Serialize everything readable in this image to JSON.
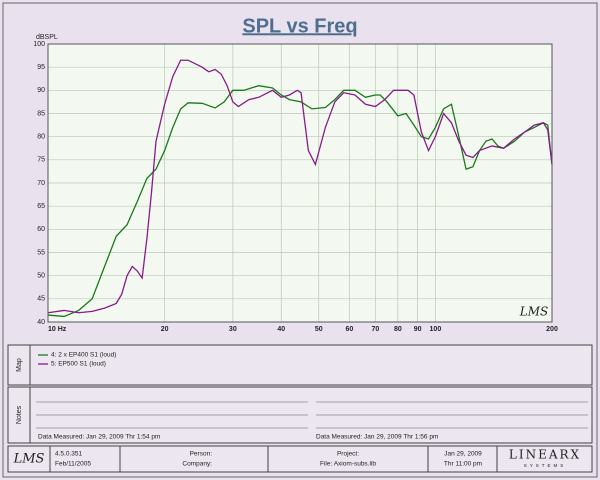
{
  "chart_data": {
    "type": "line",
    "title": "SPL vs Freq",
    "y_label": "dBSPL",
    "watermark": "LMS",
    "xlog": true,
    "xlim": [
      10,
      200
    ],
    "ylim": [
      40,
      100
    ],
    "xticks": [
      {
        "value": 10,
        "label": "10 Hz"
      },
      20,
      30,
      40,
      50,
      60,
      70,
      80,
      90,
      100,
      200
    ],
    "yticks": [
      40,
      45,
      50,
      55,
      60,
      65,
      70,
      75,
      80,
      85,
      90,
      95,
      100
    ],
    "grid": true,
    "series": [
      {
        "name": "4: 2 x EP400 S1 (loud)",
        "color": "#1a7a1a",
        "x": [
          10,
          11,
          12,
          13,
          14,
          15,
          16,
          17,
          18,
          19,
          20,
          21,
          22,
          23,
          25,
          27,
          28.5,
          30,
          32,
          35,
          38,
          40,
          42,
          45,
          48,
          52,
          55,
          58,
          62,
          66,
          70,
          72,
          75,
          80,
          84,
          88,
          92,
          96,
          100,
          105,
          110,
          115,
          120,
          125,
          130,
          135,
          140,
          145,
          150,
          160,
          170,
          180,
          190,
          195,
          200
        ],
        "values": [
          41.5,
          41.2,
          42.5,
          45,
          52,
          58.5,
          61,
          66,
          71,
          73,
          77,
          82,
          86,
          87.3,
          87.2,
          86.2,
          87.5,
          90,
          90,
          91,
          90.5,
          89,
          88,
          87.5,
          86,
          86.3,
          88,
          90,
          90,
          88.5,
          89,
          89,
          87.5,
          84.5,
          85,
          82.5,
          80,
          79.5,
          82,
          86,
          87,
          80,
          73,
          73.5,
          77,
          79,
          79.5,
          78,
          77.5,
          79,
          81,
          82,
          83,
          82.5,
          74
        ]
      },
      {
        "name": "5: EP500 S1 (loud)",
        "color": "#8a1a8a",
        "x": [
          10,
          11,
          12,
          13,
          14,
          15,
          15.5,
          16,
          16.5,
          17,
          17.5,
          18,
          18.5,
          19,
          20,
          21,
          22,
          23,
          25,
          26,
          27,
          28,
          29,
          30,
          31,
          33,
          35,
          38,
          40,
          42,
          44,
          45,
          47,
          49,
          52,
          55,
          58,
          62,
          66,
          70,
          74,
          78,
          85,
          88,
          92,
          96,
          100,
          105,
          110,
          115,
          120,
          125,
          130,
          140,
          150,
          160,
          170,
          180,
          190,
          195,
          200
        ],
        "values": [
          42,
          42.5,
          42,
          42.3,
          43,
          44,
          46,
          50,
          52,
          51,
          49.5,
          58,
          68,
          79,
          87,
          93,
          96.5,
          96.5,
          95,
          94,
          94.5,
          93.5,
          91,
          87.5,
          86.5,
          88,
          88.5,
          90,
          88.5,
          89,
          90,
          89.5,
          77,
          74,
          82,
          87.5,
          89.5,
          89,
          87,
          86.5,
          88,
          90,
          90,
          89,
          81,
          77,
          80,
          85,
          83,
          79,
          76,
          75.5,
          77,
          78,
          77.5,
          79.5,
          81,
          82.5,
          83,
          81.5,
          74
        ]
      }
    ]
  },
  "map": {
    "label": "Map"
  },
  "notes": {
    "label": "Notes",
    "entries": [
      "Data Measured: Jan 29, 2009 Thr 1:54 pm",
      "Data Measured: Jan 29, 2009 Thr 1:56 pm"
    ]
  },
  "footer": {
    "logo": "LMS",
    "version": "4.5.0.351",
    "build_date": "Feb/11/2005",
    "person": "Person:",
    "company": "Company:",
    "project": "Project:",
    "file": "File: Axiom-subs.lib",
    "date": "Jan 29, 2009",
    "time": "Thr 11:00 pm",
    "brand": "LINEARX",
    "brand_sub": "SYSTEMS"
  }
}
